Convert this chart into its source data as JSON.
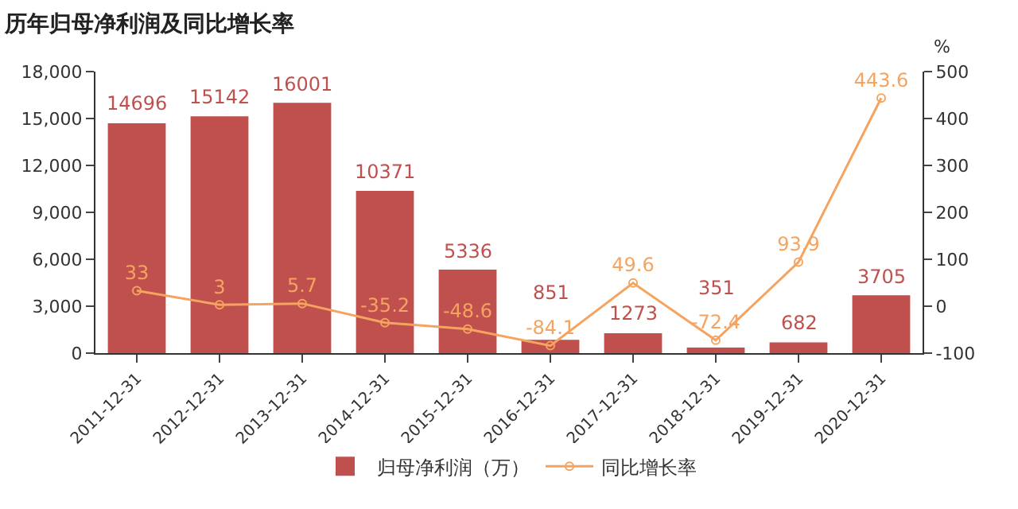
{
  "chart_data": {
    "type": "bar",
    "title": "历年归母净利润及同比增长率",
    "categories": [
      "2011-12-31",
      "2012-12-31",
      "2013-12-31",
      "2014-12-31",
      "2015-12-31",
      "2016-12-31",
      "2017-12-31",
      "2018-12-31",
      "2019-12-31",
      "2020-12-31"
    ],
    "series": [
      {
        "name": "归母净利润（万）",
        "color": "#c0504d",
        "values": [
          14696,
          15142,
          16001,
          10371,
          5336,
          851,
          1273,
          351,
          682,
          3705
        ]
      },
      {
        "name": "同比增长率",
        "type": "line",
        "axis": "y2",
        "color": "#f4a460",
        "marker": "circle",
        "values": [
          33,
          3,
          5.7,
          -35.2,
          -48.6,
          -84.1,
          49.6,
          -72.4,
          93.9,
          443.6
        ]
      }
    ],
    "ylim": [
      0,
      18000
    ],
    "yticks": [
      0,
      {
        "value": 3000,
        "label": "3,000"
      },
      {
        "value": 6000,
        "label": "6,000"
      },
      {
        "value": 9000,
        "label": "9,000"
      },
      {
        "value": 12000,
        "label": "12,000"
      },
      {
        "value": 15000,
        "label": "15,000"
      },
      {
        "value": 18000,
        "label": "18,000"
      }
    ],
    "y2label": "%",
    "y2lim": [
      -100,
      500
    ],
    "y2ticks": [
      -100,
      0,
      100,
      200,
      300,
      400,
      500
    ],
    "data_labels": true,
    "legend": "bottom"
  }
}
